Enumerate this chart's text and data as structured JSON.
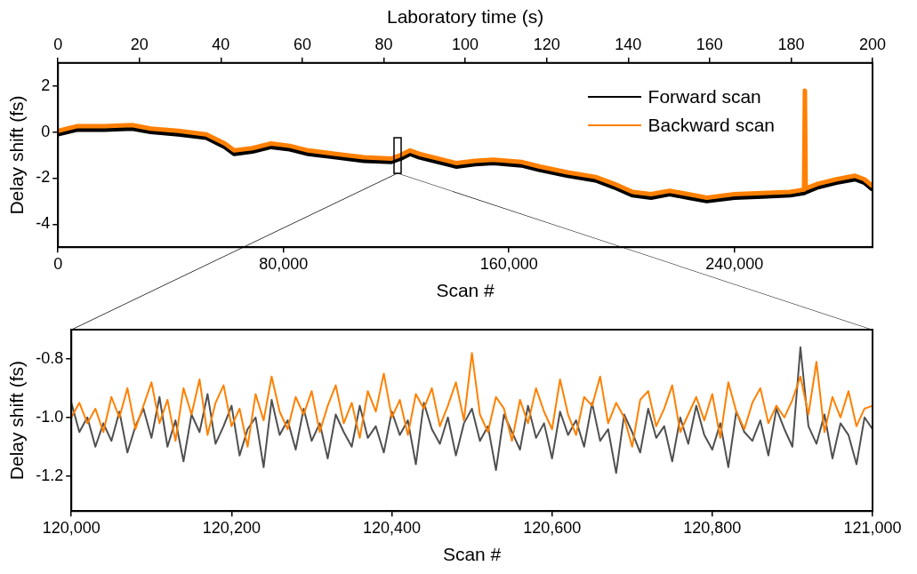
{
  "chart_data": [
    {
      "type": "line",
      "xlabel": "Scan #",
      "x2label": "Laboratory time (s)",
      "ylabel": "Delay shift (fs)",
      "legend": "top right",
      "xlim": [
        0,
        289000
      ],
      "xticks": [
        0,
        {
          "value": 80000,
          "label": "80,000"
        },
        {
          "value": 160000,
          "label": "160,000"
        },
        {
          "value": 240000,
          "label": "240,000"
        }
      ],
      "x2lim": [
        0,
        200
      ],
      "x2ticks": [
        0,
        20,
        40,
        60,
        80,
        100,
        120,
        140,
        160,
        180,
        200
      ],
      "ylim": [
        -5,
        3
      ],
      "yticks": [
        -4,
        -2,
        0,
        2
      ],
      "x": [
        0,
        6600,
        16400,
        26300,
        32900,
        42700,
        52600,
        59200,
        62500,
        69000,
        75600,
        82200,
        88800,
        98600,
        108500,
        118300,
        121600,
        124900,
        128200,
        134800,
        141400,
        148000,
        154500,
        164400,
        171000,
        180800,
        190700,
        197300,
        203900,
        210400,
        217000,
        223600,
        230200,
        240000,
        249900,
        259800,
        264700,
        269600,
        276200,
        282800,
        286100,
        289000
      ],
      "series": [
        {
          "name": "Forward scan",
          "color": "#000000",
          "values": [
            -0.1,
            0.1,
            0.1,
            0.15,
            0,
            -0.1,
            -0.25,
            -0.65,
            -0.95,
            -0.85,
            -0.65,
            -0.75,
            -0.95,
            -1.1,
            -1.25,
            -1.3,
            -1.15,
            -0.95,
            -1.1,
            -1.3,
            -1.5,
            -1.4,
            -1.35,
            -1.45,
            -1.65,
            -1.9,
            -2.1,
            -2.4,
            -2.75,
            -2.85,
            -2.7,
            -2.85,
            -3.0,
            -2.85,
            -2.8,
            -2.75,
            -2.65,
            -2.4,
            -2.2,
            -2.05,
            -2.2,
            -2.5
          ]
        },
        {
          "name": "Backward scan",
          "color": "#ff8000",
          "x": [
            0,
            6600,
            16400,
            26300,
            32900,
            42700,
            52600,
            59200,
            62500,
            69000,
            75600,
            82200,
            88800,
            98600,
            108500,
            118300,
            121600,
            124900,
            128200,
            134800,
            141400,
            148000,
            154500,
            164400,
            171000,
            180800,
            190700,
            197300,
            203900,
            210400,
            217000,
            223600,
            230200,
            240000,
            249900,
            259800,
            264700,
            265000,
            265300,
            269600,
            276200,
            282800,
            286100,
            289000
          ],
          "values": [
            0.05,
            0.25,
            0.25,
            0.3,
            0.15,
            0.05,
            -0.1,
            -0.5,
            -0.8,
            -0.7,
            -0.5,
            -0.6,
            -0.8,
            -0.95,
            -1.1,
            -1.15,
            -1.0,
            -0.8,
            -0.95,
            -1.15,
            -1.35,
            -1.25,
            -1.2,
            -1.3,
            -1.5,
            -1.75,
            -1.95,
            -2.25,
            -2.6,
            -2.7,
            -2.55,
            -2.7,
            -2.85,
            -2.7,
            -2.65,
            -2.6,
            -2.5,
            1.8,
            -2.45,
            -2.25,
            -2.05,
            -1.9,
            -2.05,
            -2.35
          ]
        }
      ]
    },
    {
      "type": "line",
      "xlabel": "Scan #",
      "ylabel": "Delay shift (fs)",
      "xlim": [
        120000,
        121000
      ],
      "xticks": [
        {
          "value": 120000,
          "label": "120,000"
        },
        {
          "value": 120200,
          "label": "120,200"
        },
        {
          "value": 120400,
          "label": "120,400"
        },
        {
          "value": 120600,
          "label": "120,600"
        },
        {
          "value": 120800,
          "label": "120,800"
        },
        {
          "value": 121000,
          "label": "121,000"
        }
      ],
      "ylim": [
        -1.32,
        -0.7
      ],
      "yticks": [
        {
          "value": -1.2,
          "label": "-1.2"
        },
        {
          "value": -1.0,
          "label": "-1.0"
        },
        {
          "value": -0.8,
          "label": "-0.8"
        }
      ],
      "x": [
        120000,
        120010,
        120020,
        120030,
        120040,
        120050,
        120060,
        120070,
        120080,
        120090,
        120100,
        120110,
        120120,
        120130,
        120140,
        120150,
        120160,
        120170,
        120180,
        120190,
        120200,
        120210,
        120220,
        120230,
        120240,
        120250,
        120260,
        120270,
        120280,
        120290,
        120300,
        120310,
        120320,
        120330,
        120340,
        120350,
        120360,
        120370,
        120380,
        120390,
        120400,
        120410,
        120420,
        120430,
        120440,
        120450,
        120460,
        120470,
        120480,
        120490,
        120500,
        120510,
        120520,
        120530,
        120540,
        120550,
        120560,
        120570,
        120580,
        120590,
        120600,
        120610,
        120620,
        120630,
        120640,
        120650,
        120660,
        120670,
        120680,
        120690,
        120700,
        120710,
        120720,
        120730,
        120740,
        120750,
        120760,
        120770,
        120780,
        120790,
        120800,
        120810,
        120820,
        120830,
        120840,
        120850,
        120860,
        120870,
        120880,
        120890,
        120900,
        120910,
        120920,
        120930,
        120940,
        120950,
        120960,
        120970,
        120980,
        120990,
        121000
      ],
      "series": [
        {
          "color": "#505050",
          "values": [
            -0.95,
            -1.05,
            -1.0,
            -1.1,
            -1.02,
            -1.08,
            -0.98,
            -1.12,
            -1.03,
            -0.97,
            -1.07,
            -0.93,
            -1.1,
            -1.01,
            -1.15,
            -0.99,
            -1.05,
            -0.92,
            -1.09,
            -1.03,
            -0.96,
            -1.13,
            -1.04,
            -1.0,
            -1.17,
            -0.94,
            -1.06,
            -1.01,
            -1.11,
            -0.97,
            -1.08,
            -1.02,
            -1.14,
            -0.99,
            -1.05,
            -1.1,
            -0.96,
            -1.07,
            -1.03,
            -1.12,
            -0.98,
            -1.06,
            -1.01,
            -1.16,
            -0.95,
            -1.04,
            -1.09,
            -1.0,
            -1.13,
            -1.02,
            -0.97,
            -1.08,
            -1.03,
            -1.18,
            -0.99,
            -1.05,
            -1.11,
            -0.96,
            -1.07,
            -1.02,
            -1.14,
            -0.98,
            -1.06,
            -1.01,
            -1.1,
            -0.95,
            -1.08,
            -1.04,
            -1.19,
            -0.99,
            -1.05,
            -1.12,
            -0.97,
            -1.07,
            -1.03,
            -1.15,
            -1.0,
            -1.09,
            -0.96,
            -1.06,
            -1.11,
            -1.02,
            -1.17,
            -0.98,
            -1.05,
            -1.08,
            -1.01,
            -1.13,
            -0.97,
            -1.04,
            -1.1,
            -0.76,
            -1.03,
            -1.09,
            -0.99,
            -1.14,
            -1.02,
            -1.06,
            -1.16,
            -1.0,
            -1.04
          ]
        },
        {
          "color": "#ff8000",
          "values": [
            -1.0,
            -0.95,
            -1.02,
            -0.97,
            -1.05,
            -0.93,
            -1.0,
            -0.9,
            -1.04,
            -0.96,
            -0.88,
            -1.02,
            -0.94,
            -1.08,
            -0.9,
            -0.99,
            -0.87,
            -1.06,
            -0.95,
            -0.89,
            -1.03,
            -0.97,
            -1.1,
            -0.92,
            -1.01,
            -0.86,
            -0.98,
            -1.04,
            -0.93,
            -0.99,
            -0.91,
            -1.05,
            -0.96,
            -0.89,
            -1.02,
            -0.95,
            -1.07,
            -0.91,
            -0.98,
            -0.85,
            -1.0,
            -0.94,
            -1.06,
            -0.92,
            -0.97,
            -0.9,
            -1.03,
            -0.96,
            -0.88,
            -1.01,
            -0.78,
            -0.99,
            -1.05,
            -0.93,
            -0.97,
            -1.08,
            -0.94,
            -1.02,
            -0.9,
            -0.98,
            -1.04,
            -0.87,
            -0.99,
            -1.06,
            -0.93,
            -0.96,
            -0.86,
            -1.02,
            -0.95,
            -1.0,
            -1.1,
            -0.94,
            -0.91,
            -1.03,
            -0.97,
            -0.89,
            -1.05,
            -0.99,
            -0.93,
            -1.01,
            -0.92,
            -1.07,
            -0.88,
            -0.98,
            -1.04,
            -0.95,
            -0.9,
            -1.02,
            -0.96,
            -1.0,
            -0.94,
            -0.86,
            -0.99,
            -0.81,
            -1.05,
            -0.93,
            -1.0,
            -0.91,
            -1.03,
            -0.97,
            -0.96
          ]
        }
      ]
    }
  ]
}
